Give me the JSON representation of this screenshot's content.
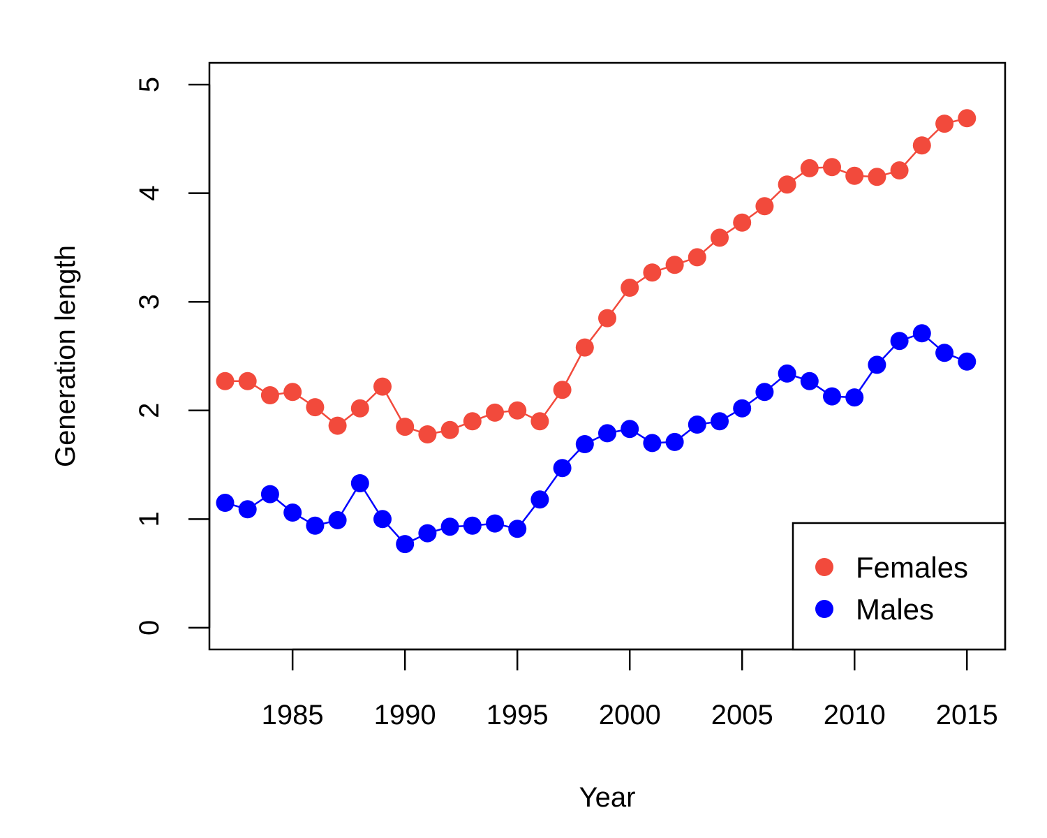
{
  "chart_data": {
    "type": "line",
    "title": "",
    "xlabel": "Year",
    "ylabel": "Generation length",
    "xlim": [
      1981.3,
      2016.7
    ],
    "ylim": [
      -0.2,
      5.2
    ],
    "xticks": [
      1985,
      1990,
      1995,
      2000,
      2005,
      2010,
      2015
    ],
    "yticks": [
      0,
      1,
      2,
      3,
      4,
      5
    ],
    "grid": false,
    "legend_position": "bottom-right",
    "x": [
      1982,
      1983,
      1984,
      1985,
      1986,
      1987,
      1988,
      1989,
      1990,
      1991,
      1992,
      1993,
      1994,
      1995,
      1996,
      1997,
      1998,
      1999,
      2000,
      2001,
      2002,
      2003,
      2004,
      2005,
      2006,
      2007,
      2008,
      2009,
      2010,
      2011,
      2012,
      2013,
      2014,
      2015
    ],
    "series": [
      {
        "name": "Females",
        "color": "#f24a3c",
        "values": [
          2.27,
          2.27,
          2.14,
          2.17,
          2.03,
          1.86,
          2.02,
          2.22,
          1.85,
          1.78,
          1.82,
          1.9,
          1.98,
          2.0,
          1.9,
          2.19,
          2.58,
          2.85,
          3.13,
          3.27,
          3.34,
          3.41,
          3.59,
          3.73,
          3.88,
          4.08,
          4.23,
          4.24,
          4.16,
          4.15,
          4.21,
          4.44,
          4.64,
          4.69
        ]
      },
      {
        "name": "Males",
        "color": "#0000ff",
        "values": [
          1.15,
          1.09,
          1.23,
          1.06,
          0.94,
          0.99,
          1.33,
          1.0,
          0.77,
          0.87,
          0.93,
          0.94,
          0.96,
          0.91,
          1.18,
          1.47,
          1.69,
          1.79,
          1.83,
          1.7,
          1.71,
          1.87,
          1.9,
          2.02,
          2.17,
          2.34,
          2.27,
          2.13,
          2.12,
          2.42,
          2.64,
          2.71,
          2.53,
          2.45
        ]
      }
    ]
  }
}
